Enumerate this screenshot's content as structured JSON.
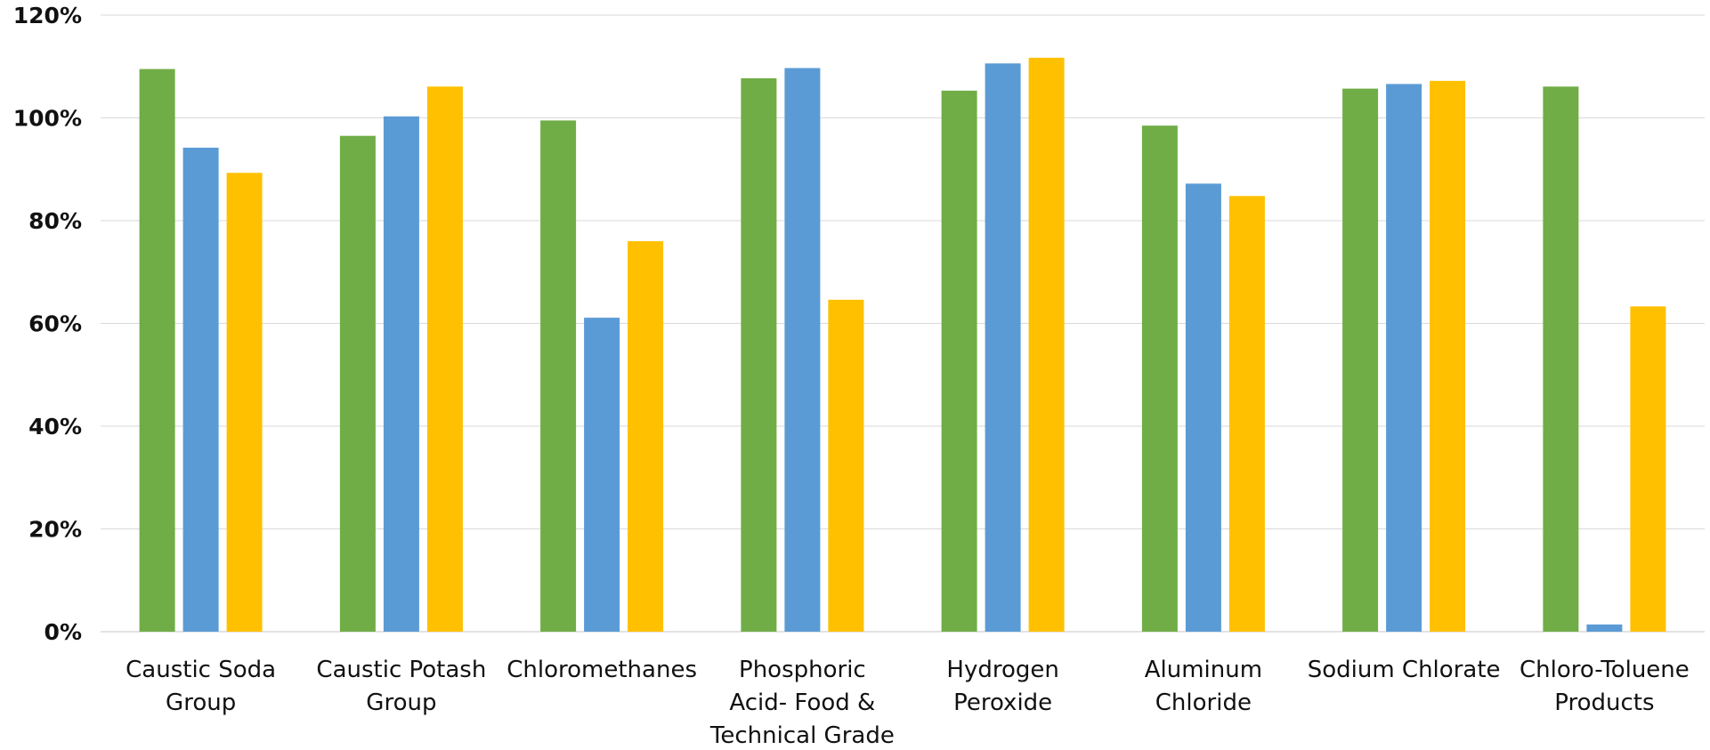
{
  "chart_data": {
    "type": "bar",
    "title": "",
    "xlabel": "",
    "ylabel": "",
    "ylim": [
      0,
      1.2
    ],
    "grid": true,
    "legend": "none",
    "y_ticks": [
      "0%",
      "20%",
      "40%",
      "60%",
      "80%",
      "100%",
      "120%"
    ],
    "categories": [
      [
        "Caustic Soda",
        "Group"
      ],
      [
        "Caustic Potash",
        "Group"
      ],
      [
        "Chloromethanes"
      ],
      [
        "Phosphoric",
        "Acid- Food &",
        "Technical Grade"
      ],
      [
        "Hydrogen",
        "Peroxide"
      ],
      [
        "Aluminum",
        "Chloride"
      ],
      [
        "Sodium Chlorate"
      ],
      [
        "Chloro-Toluene",
        "Products"
      ]
    ],
    "series": [
      {
        "color": "#70ad47",
        "values": [
          1.095,
          0.965,
          0.995,
          1.077,
          1.053,
          0.985,
          1.057,
          1.061
        ]
      },
      {
        "color": "#5b9bd5",
        "values": [
          0.942,
          1.003,
          0.611,
          1.097,
          1.106,
          0.872,
          1.066,
          0.014
        ]
      },
      {
        "color": "#ffc000",
        "values": [
          0.893,
          1.061,
          0.76,
          0.646,
          1.117,
          0.848,
          1.072,
          0.633
        ]
      }
    ]
  }
}
